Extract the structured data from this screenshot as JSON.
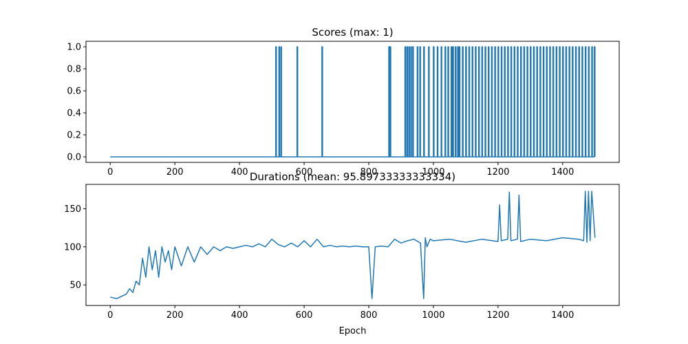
{
  "chart_data": [
    {
      "type": "line",
      "title": "Scores (max: 1)",
      "xlabel": "",
      "ylabel": "",
      "xlim": [
        -75,
        1575
      ],
      "ylim": [
        -0.05,
        1.05
      ],
      "xticks": [
        0,
        200,
        400,
        600,
        800,
        1000,
        1200,
        1400
      ],
      "yticks": [
        0.0,
        0.2,
        0.4,
        0.6,
        0.8,
        1.0
      ],
      "ytick_labels": [
        "0.0",
        "0.2",
        "0.4",
        "0.6",
        "0.8",
        "1.0"
      ],
      "grid": false,
      "color": "#1f77b4",
      "x_range": [
        0,
        1500
      ],
      "baseline": 0,
      "peak": 1,
      "spike_epochs": [
        512,
        522,
        528,
        578,
        655,
        862,
        866,
        912,
        918,
        924,
        930,
        936,
        950,
        958,
        970,
        985,
        1000,
        1012,
        1024,
        1036,
        1045,
        1055,
        1060,
        1068,
        1075,
        1080,
        1090,
        1100,
        1110,
        1120,
        1130,
        1140,
        1150,
        1160,
        1170,
        1180,
        1190,
        1200,
        1210,
        1220,
        1230,
        1240,
        1250,
        1260,
        1270,
        1280,
        1290,
        1300,
        1310,
        1320,
        1330,
        1340,
        1350,
        1360,
        1370,
        1380,
        1390,
        1400,
        1410,
        1420,
        1430,
        1440,
        1450,
        1460,
        1470,
        1480,
        1490,
        1498
      ]
    },
    {
      "type": "line",
      "title": "Durations (mean: 95.89733333333334)",
      "xlabel": "Epoch",
      "ylabel": "",
      "xlim": [
        -75,
        1575
      ],
      "ylim": [
        23,
        182
      ],
      "xticks": [
        0,
        200,
        400,
        600,
        800,
        1000,
        1200,
        1400
      ],
      "yticks": [
        50,
        100,
        150
      ],
      "ytick_labels": [
        "50",
        "100",
        "150"
      ],
      "grid": false,
      "color": "#1f77b4",
      "x": [
        0,
        10,
        20,
        30,
        40,
        50,
        60,
        70,
        80,
        90,
        100,
        110,
        120,
        130,
        140,
        150,
        160,
        170,
        180,
        190,
        200,
        220,
        240,
        260,
        280,
        300,
        320,
        340,
        360,
        380,
        400,
        420,
        440,
        460,
        480,
        500,
        520,
        540,
        560,
        580,
        600,
        620,
        640,
        660,
        680,
        700,
        720,
        740,
        760,
        780,
        800,
        810,
        820,
        840,
        860,
        880,
        900,
        920,
        940,
        960,
        970,
        975,
        980,
        990,
        1000,
        1050,
        1100,
        1150,
        1200,
        1205,
        1210,
        1230,
        1235,
        1240,
        1260,
        1265,
        1270,
        1300,
        1350,
        1400,
        1450,
        1465,
        1470,
        1475,
        1480,
        1485,
        1490,
        1500
      ],
      "y": [
        34,
        33,
        32,
        34,
        36,
        38,
        45,
        40,
        55,
        50,
        85,
        60,
        100,
        70,
        95,
        60,
        100,
        80,
        95,
        70,
        100,
        75,
        100,
        80,
        100,
        90,
        100,
        95,
        100,
        98,
        100,
        102,
        100,
        104,
        100,
        110,
        103,
        100,
        105,
        100,
        108,
        100,
        110,
        100,
        102,
        100,
        101,
        100,
        101,
        100,
        100,
        32,
        100,
        101,
        100,
        110,
        105,
        108,
        110,
        105,
        32,
        112,
        100,
        110,
        108,
        110,
        106,
        110,
        107,
        155,
        108,
        110,
        172,
        108,
        110,
        168,
        107,
        110,
        108,
        112,
        110,
        108,
        173,
        106,
        173,
        108,
        173,
        112
      ]
    }
  ]
}
